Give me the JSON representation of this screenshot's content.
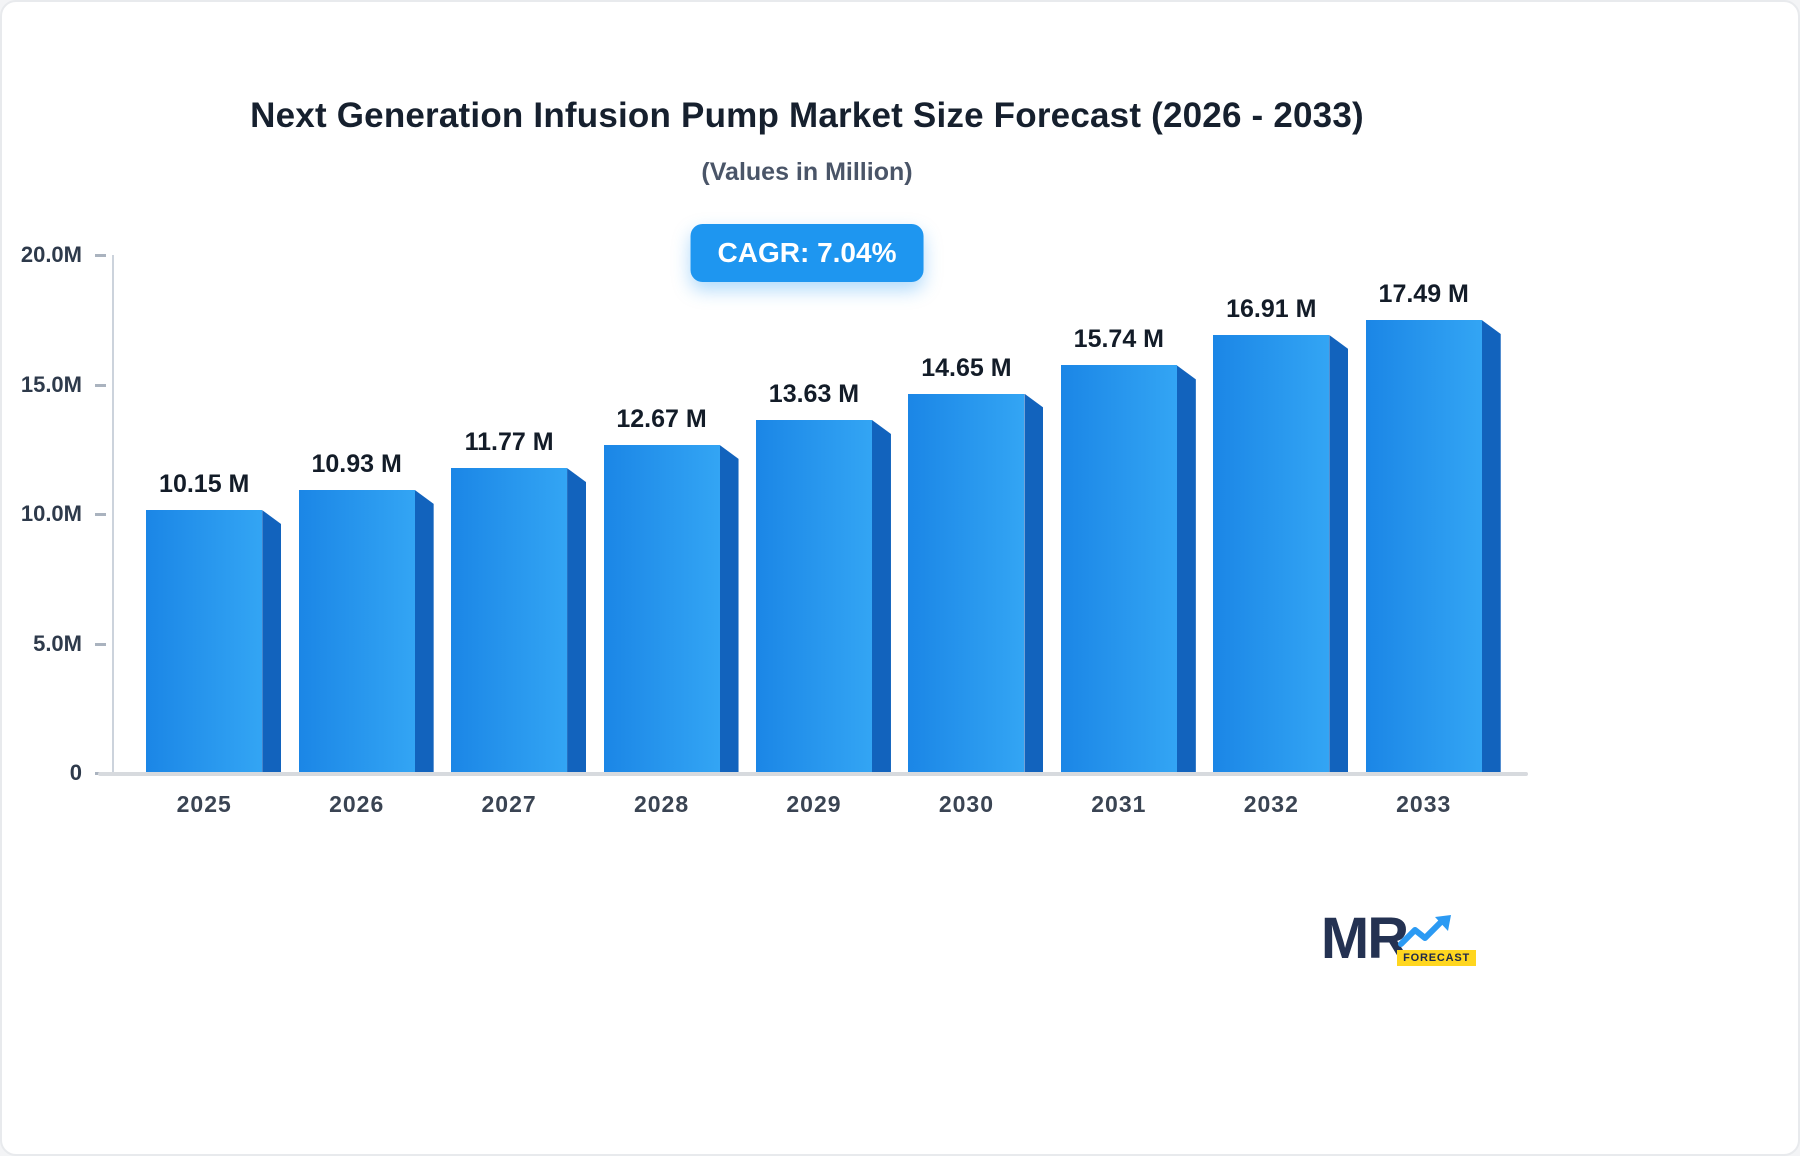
{
  "page": {
    "title": "Next Generation Infusion Pump Market Size Forecast (2026 - 2033)",
    "subtitle": "(Values in Million)",
    "cagr_badge": "CAGR: 7.04%"
  },
  "chart_data": {
    "type": "bar",
    "title": "Next Generation Infusion Pump Market Size Forecast (2026 - 2033)",
    "subtitle": "(Values in Million)",
    "categories": [
      "2025",
      "2026",
      "2027",
      "2028",
      "2029",
      "2030",
      "2031",
      "2032",
      "2033"
    ],
    "values": [
      10.15,
      10.93,
      11.77,
      12.67,
      13.63,
      14.65,
      15.74,
      16.91,
      17.49
    ],
    "value_labels": [
      "10.15 M",
      "10.93 M",
      "11.77 M",
      "12.67 M",
      "13.63 M",
      "14.65 M",
      "15.74 M",
      "16.91 M",
      "17.49 M"
    ],
    "ylim": [
      0,
      20
    ],
    "yticks": [
      {
        "label": "20.0M",
        "value": 20
      },
      {
        "label": "15.0M",
        "value": 15
      },
      {
        "label": "10.0M",
        "value": 10
      },
      {
        "label": "5.0M",
        "value": 5
      },
      {
        "label": "0",
        "value": 0
      }
    ],
    "cagr": "CAGR: 7.04%",
    "grid": false,
    "legend": false,
    "bar_color_main": "#1b86e6",
    "bar_color_light": "#33a5f4",
    "bar_color_side": "#1263bd"
  },
  "logo": {
    "text": "MR",
    "sub": "FORECAST",
    "arrow_color": "#2b9af3",
    "text_color": "#243252",
    "sub_bg": "#ffd61f"
  }
}
